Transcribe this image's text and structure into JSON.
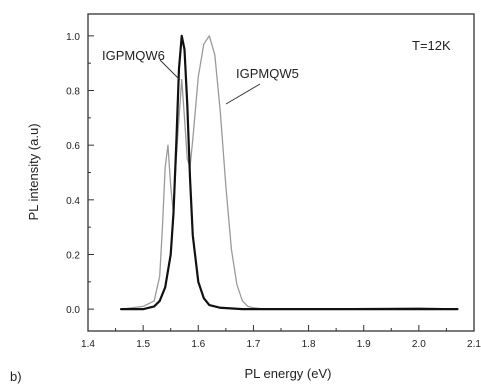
{
  "panel_label": "b)",
  "chart_data": {
    "type": "line",
    "xlabel": "PL energy (eV)",
    "ylabel": "PL intensity (a.u)",
    "xlim": [
      1.4,
      2.1
    ],
    "ylim": [
      -0.08,
      1.08
    ],
    "x_ticks": [
      "1.4",
      "1.5",
      "1.6",
      "1.7",
      "1.8",
      "1.9",
      "2.0",
      "2.1"
    ],
    "y_ticks": [
      "0.0",
      "0.2",
      "0.4",
      "0.6",
      "0.8",
      "1.0"
    ],
    "grid": false,
    "annotations": [
      {
        "text": "T=12K"
      },
      {
        "text": "IGPMQW6"
      },
      {
        "text": "IGPMQW5"
      }
    ],
    "series": [
      {
        "label": "IGPMQW6",
        "color": "#111111",
        "x": [
          1.46,
          1.5,
          1.52,
          1.53,
          1.54,
          1.55,
          1.555,
          1.56,
          1.565,
          1.57,
          1.575,
          1.58,
          1.585,
          1.59,
          1.6,
          1.61,
          1.62,
          1.64,
          1.68,
          1.8,
          2.07
        ],
        "y": [
          0.0,
          0.0,
          0.01,
          0.03,
          0.08,
          0.2,
          0.35,
          0.6,
          0.88,
          1.0,
          0.95,
          0.75,
          0.48,
          0.27,
          0.1,
          0.04,
          0.015,
          0.005,
          0.0,
          0.0,
          0.0
        ]
      },
      {
        "label": "IGPMQW5",
        "color": "#9a9a9a",
        "x": [
          1.46,
          1.5,
          1.52,
          1.53,
          1.535,
          1.54,
          1.545,
          1.55,
          1.555,
          1.56,
          1.565,
          1.57,
          1.575,
          1.58,
          1.585,
          1.59,
          1.6,
          1.61,
          1.62,
          1.63,
          1.64,
          1.65,
          1.66,
          1.67,
          1.68,
          1.69,
          1.7,
          1.72,
          1.8,
          2.0,
          2.07
        ],
        "y": [
          0.0,
          0.01,
          0.03,
          0.12,
          0.3,
          0.52,
          0.6,
          0.45,
          0.35,
          0.55,
          0.7,
          0.84,
          0.7,
          0.55,
          0.52,
          0.62,
          0.85,
          0.97,
          1.0,
          0.93,
          0.72,
          0.45,
          0.22,
          0.09,
          0.03,
          0.01,
          0.005,
          0.0,
          0.0,
          0.005,
          0.0
        ]
      }
    ]
  }
}
